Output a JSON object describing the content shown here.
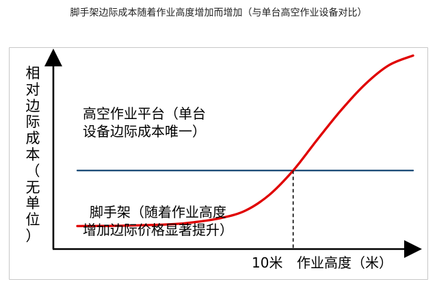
{
  "page": {
    "title": "脚手架边际成本随着作业高度增加而增加（与单台高空作业设备对比）"
  },
  "chart_data": {
    "type": "line",
    "title": "脚手架边际成本随着作业高度增加而增加（与单台高空作业设备对比）",
    "ylabel": "相对边际成本（无单位）",
    "xlabel": "作业高度（米）",
    "x_marker": {
      "value": 10,
      "label": "10米",
      "style": "dashed"
    },
    "xlim": [
      0,
      15
    ],
    "ylim": [
      0,
      10
    ],
    "grid": false,
    "legend": "none",
    "series": [
      {
        "name": "高空作业平台（单台设备边际成本唯一）",
        "color": "#1f4e79",
        "x": [
          1,
          15
        ],
        "y": [
          4.1,
          4.1
        ]
      },
      {
        "name": "脚手架（随着作业高度增加边际价格显著提升）",
        "color": "#e00000",
        "x": [
          1,
          3,
          5,
          6,
          7,
          8,
          9,
          10,
          11,
          12,
          13,
          14,
          15
        ],
        "y": [
          1.2,
          1.22,
          1.3,
          1.42,
          1.62,
          2.0,
          2.82,
          4.1,
          5.7,
          7.25,
          8.6,
          9.6,
          10.1
        ]
      }
    ],
    "annotations": [
      [
        "高空作业平台（单台",
        "设备边际成本唯一）"
      ],
      [
        "脚手架（随着作业高度",
        "增加边际价格显著提升）"
      ]
    ]
  }
}
